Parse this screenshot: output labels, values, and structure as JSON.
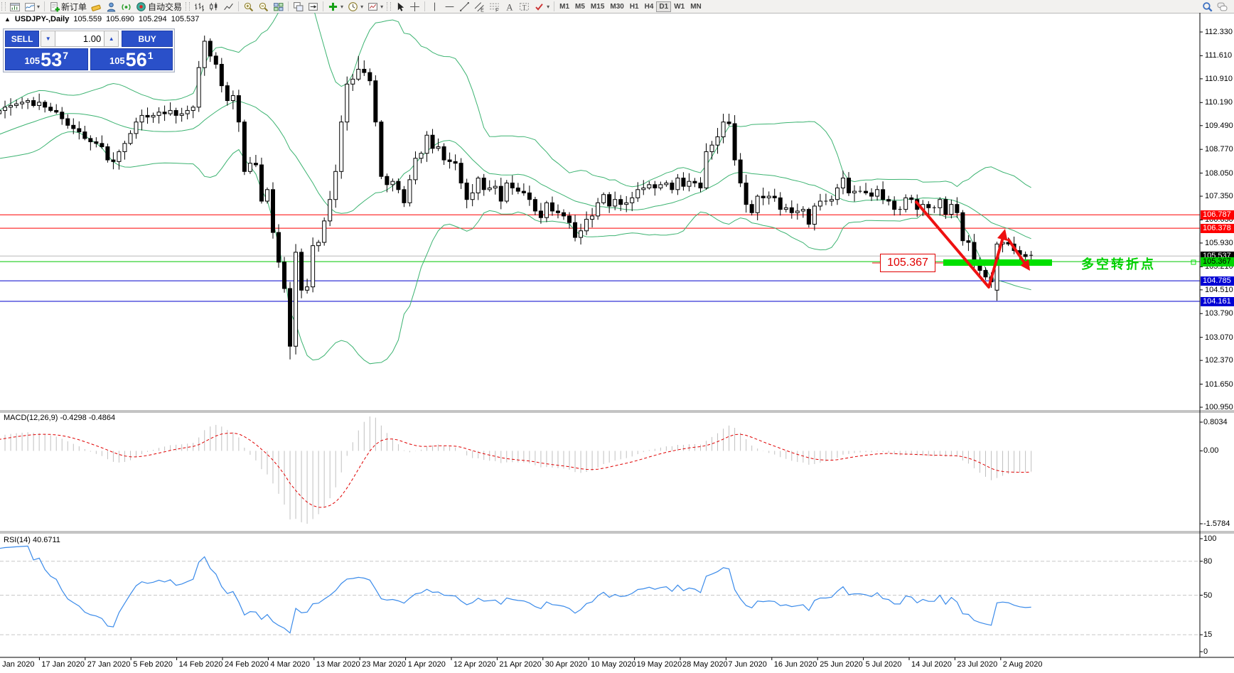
{
  "toolbar": {
    "new_order_label": "新订单",
    "autotrade_label": "自动交易",
    "timeframes": [
      "M1",
      "M5",
      "M15",
      "M30",
      "H1",
      "H4",
      "D1",
      "W1",
      "MN"
    ],
    "active_timeframe": "D1"
  },
  "chart_header": {
    "collapse_icon": "▲",
    "symbol_period": "USDJPY-,Daily",
    "open": "105.559",
    "high": "105.690",
    "low": "105.294",
    "close": "105.537"
  },
  "trade_panel": {
    "sell_label": "SELL",
    "buy_label": "BUY",
    "volume": "1.00",
    "bid": {
      "base": "105",
      "big": "53",
      "pip": "7"
    },
    "ask": {
      "base": "105",
      "big": "56",
      "pip": "1"
    }
  },
  "indicators": {
    "macd_label": "MACD(12,26,9) -0.4298 -0.4864",
    "rsi_label": "RSI(14) 40.6711"
  },
  "annotations": {
    "price_label": "105.367",
    "note_text": "多空转折点"
  },
  "axes": {
    "price_ticks": [
      "112.330",
      "111.610",
      "110.910",
      "110.190",
      "109.490",
      "108.770",
      "108.050",
      "107.350",
      "106.630",
      "105.930",
      "105.210",
      "104.510",
      "103.790",
      "103.070",
      "102.370",
      "101.650",
      "100.950"
    ],
    "macd_ticks": [
      "0.8034",
      "0.00",
      "-1.5784"
    ],
    "rsi_ticks": [
      "100",
      "80",
      "50",
      "15",
      "0"
    ],
    "date_ticks": [
      "8 Jan 2020",
      "17 Jan 2020",
      "27 Jan 2020",
      "5 Feb 2020",
      "14 Feb 2020",
      "24 Feb 2020",
      "4 Mar 2020",
      "13 Mar 2020",
      "23 Mar 2020",
      "1 Apr 2020",
      "12 Apr 2020",
      "21 Apr 2020",
      "30 Apr 2020",
      "10 May 2020",
      "19 May 2020",
      "28 May 2020",
      "7 Jun 2020",
      "16 Jun 2020",
      "25 Jun 2020",
      "5 Jul 2020",
      "14 Jul 2020",
      "23 Jul 2020",
      "2 Aug 2020"
    ],
    "level_badges": [
      {
        "text": "106.787",
        "bg": "#fe0000",
        "fg": "#ffffff",
        "price": 106.787
      },
      {
        "text": "106.378",
        "bg": "#fe0000",
        "fg": "#ffffff",
        "price": 106.378
      },
      {
        "text": "105.537",
        "bg": "#000000",
        "fg": "#ffffff",
        "price": 105.537
      },
      {
        "text": "105.367",
        "bg": "#00d400",
        "fg": "#000000",
        "price": 105.367
      },
      {
        "text": "104.785",
        "bg": "#0000d4",
        "fg": "#ffffff",
        "price": 104.785
      },
      {
        "text": "104.161",
        "bg": "#0000d4",
        "fg": "#ffffff",
        "price": 104.161
      }
    ]
  },
  "colors": {
    "band_green": "#3cb371",
    "line_red": "#fe0000",
    "line_blue": "#0000cc",
    "line_green": "#00c800",
    "current_gray": "#b8b8b8",
    "rsi_blue": "#3b8bea",
    "macd_gray": "#c0c0c0",
    "signal_red": "#e00000",
    "highlight_green": "#00e000",
    "annotation_red": "#ee1111",
    "accent_blue": "#2a50c9"
  },
  "chart_data": {
    "type": "candlestick",
    "symbol": "USDJPY",
    "timeframe": "Daily",
    "visible_range": {
      "start": "8 Jan 2020",
      "end": "7 Aug 2020"
    },
    "y_range": [
      100.95,
      112.45
    ],
    "indicators": [
      {
        "name": "Bollinger Bands",
        "period": 20,
        "deviation": 2
      },
      {
        "name": "MACD",
        "fast": 12,
        "slow": 26,
        "signal": 9,
        "current": [
          -0.4298,
          -0.4864
        ]
      },
      {
        "name": "RSI",
        "period": 14,
        "current": 40.6711,
        "levels": [
          80,
          50,
          15
        ]
      }
    ],
    "levels": [
      {
        "price": 106.787,
        "color": "red"
      },
      {
        "price": 106.378,
        "color": "red"
      },
      {
        "price": 105.537,
        "color": "gray",
        "note": "current price line"
      },
      {
        "price": 105.367,
        "color": "green",
        "note": "annotated turning point"
      },
      {
        "price": 104.785,
        "color": "blue"
      },
      {
        "price": 104.161,
        "color": "blue"
      }
    ],
    "last_bar": {
      "open": 105.559,
      "high": 105.69,
      "low": 105.294,
      "close": 105.537
    },
    "warmup_closes": [
      108.55,
      108.6,
      108.7,
      108.78,
      108.85,
      108.92,
      109.0,
      109.05,
      108.95,
      108.88,
      108.92,
      109.05,
      109.15,
      109.25,
      109.35,
      109.45,
      109.5,
      109.55,
      109.62,
      109.7
    ],
    "closes": [
      109.85,
      109.95,
      110.05,
      110.1,
      110.15,
      110.2,
      110.25,
      110.1,
      110.2,
      110.05,
      109.95,
      109.9,
      109.7,
      109.5,
      109.4,
      109.3,
      109.1,
      109.0,
      108.95,
      108.85,
      108.45,
      108.4,
      108.7,
      108.95,
      109.25,
      109.6,
      109.8,
      109.75,
      109.8,
      109.9,
      109.85,
      109.95,
      109.8,
      109.85,
      109.95,
      110.05,
      111.25,
      112.05,
      111.6,
      111.35,
      110.7,
      110.25,
      110.4,
      109.6,
      108.1,
      108.35,
      108.3,
      107.2,
      107.55,
      106.25,
      105.35,
      104.55,
      102.8,
      105.65,
      104.5,
      104.6,
      105.85,
      105.95,
      106.6,
      107.25,
      108.1,
      109.6,
      110.75,
      110.9,
      111.2,
      111.1,
      110.85,
      109.6,
      107.95,
      107.7,
      107.8,
      107.55,
      107.15,
      107.85,
      108.5,
      108.65,
      109.2,
      108.8,
      108.85,
      108.45,
      108.4,
      108.35,
      107.75,
      107.25,
      107.45,
      107.9,
      107.55,
      107.6,
      107.65,
      107.2,
      107.75,
      107.6,
      107.5,
      107.45,
      107.25,
      106.9,
      106.7,
      107.15,
      106.9,
      106.85,
      106.75,
      106.55,
      106.1,
      106.3,
      106.65,
      106.75,
      107.15,
      107.4,
      107.05,
      107.25,
      107.1,
      107.15,
      107.3,
      107.55,
      107.6,
      107.7,
      107.6,
      107.7,
      107.75,
      107.55,
      107.9,
      107.65,
      107.8,
      107.75,
      107.6,
      108.7,
      108.9,
      109.15,
      109.6,
      109.55,
      108.45,
      107.75,
      107.1,
      106.85,
      107.35,
      107.3,
      107.35,
      107.3,
      106.95,
      107.0,
      106.85,
      106.9,
      106.95,
      106.5,
      107.05,
      107.2,
      107.2,
      107.25,
      107.6,
      107.9,
      107.45,
      107.5,
      107.5,
      107.45,
      107.35,
      107.55,
      107.25,
      107.2,
      106.95,
      106.95,
      107.3,
      107.25,
      106.95,
      107.1,
      107.0,
      107.0,
      107.25,
      106.8,
      107.1,
      106.85,
      106.0,
      105.95,
      105.35,
      105.1,
      104.9,
      104.75,
      105.9,
      105.95,
      105.9,
      105.7,
      105.58,
      105.52,
      105.537
    ],
    "special_bars": {
      "36": {
        "h": 111.45
      },
      "37": {
        "h": 112.22,
        "l": 111.0
      },
      "43": {
        "l": 109.3
      },
      "52": {
        "h": 104.75,
        "l": 102.4
      },
      "53": {
        "l": 102.55,
        "h": 105.9
      },
      "61": {
        "h": 109.8
      },
      "64": {
        "h": 111.6
      },
      "102": {
        "l": 105.98
      },
      "128": {
        "h": 109.85
      },
      "170": {
        "l": 105.85
      },
      "176": {
        "o": 104.5,
        "h": 105.97,
        "l": 104.18
      },
      "182": {
        "o": 105.559,
        "h": 105.69,
        "l": 105.294
      }
    }
  }
}
